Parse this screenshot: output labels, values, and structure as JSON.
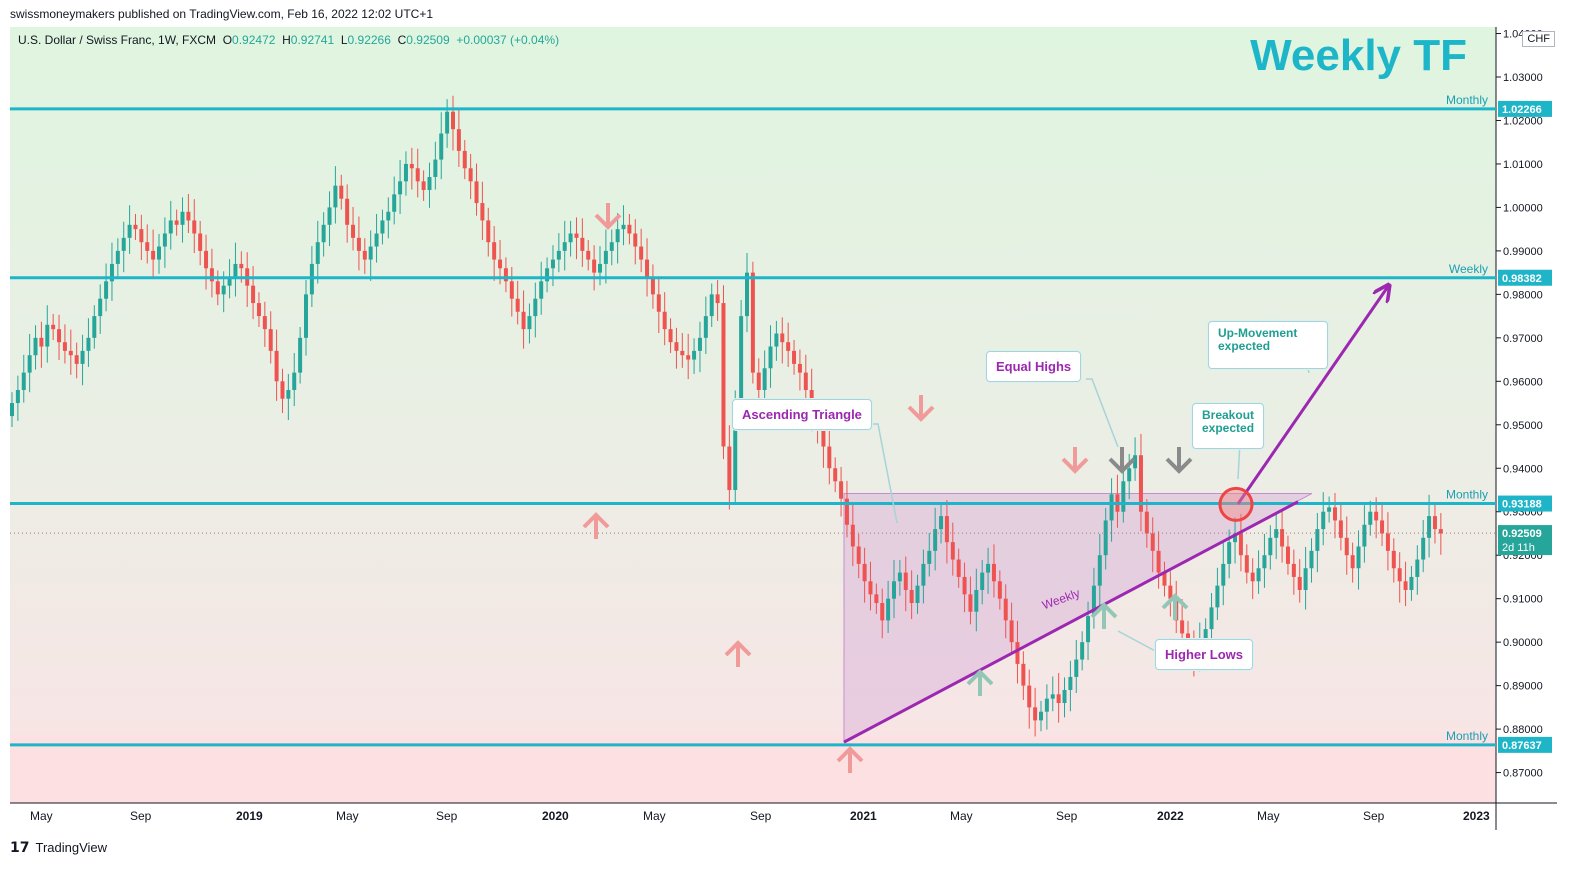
{
  "header": {
    "published_by": "swissmoneymakers published on TradingView.com, Feb 16, 2022 12:02 UTC+1"
  },
  "legend": {
    "symbol": "U.S. Dollar / Swiss Franc, 1W, FXCM",
    "open_label": "O",
    "open": "0.92472",
    "high_label": "H",
    "high": "0.92741",
    "low_label": "L",
    "low": "0.92266",
    "close_label": "C",
    "close": "0.92509",
    "change": "+0.00037 (+0.04%)"
  },
  "title": "Weekly TF",
  "currency_badge": "CHF",
  "footer": {
    "logo": "TradingView"
  },
  "colors": {
    "level_line": "#1fb5c9",
    "triangle_line": "#9c27b0",
    "up_candle": "#26a69a",
    "down_candle": "#ef5350",
    "bg_top": "#dff3e0",
    "bg_bottom": "#fde2e4"
  },
  "chart_data": {
    "type": "candlestick",
    "timeframe": "1W",
    "y_axis": {
      "range": [
        0.863,
        1.0415
      ],
      "ticks": [
        "1.04000",
        "1.03000",
        "1.02000",
        "1.01000",
        "1.00000",
        "0.99000",
        "0.98000",
        "0.97000",
        "0.96000",
        "0.95000",
        "0.94000",
        "0.93000",
        "0.92000",
        "0.91000",
        "0.90000",
        "0.89000",
        "0.88000",
        "0.87000"
      ]
    },
    "x_axis": {
      "ticks": [
        "May",
        "Sep",
        "2019",
        "May",
        "Sep",
        "2020",
        "May",
        "Sep",
        "2021",
        "May",
        "Sep",
        "2022",
        "May",
        "Sep",
        "2023"
      ]
    },
    "levels": [
      {
        "label": "Monthly",
        "value": 1.02266,
        "text": "1.02266"
      },
      {
        "label": "Weekly",
        "value": 0.98382,
        "text": "0.98382"
      },
      {
        "label": "Monthly",
        "value": 0.93188,
        "text": "0.93188"
      },
      {
        "label": "Monthly",
        "value": 0.87637,
        "text": "0.87637"
      }
    ],
    "current_price": {
      "value": 0.92509,
      "text": "0.92509",
      "countdown": "2d 11h"
    },
    "trendline_label": "Weekly",
    "annotations": {
      "ascending_triangle": "Ascending Triangle",
      "equal_highs": "Equal Highs",
      "higher_lows": "Higher Lows",
      "up_movement_1": "Up-Movement",
      "up_movement_2": "expected",
      "breakout_1": "Breakout",
      "breakout_2": "expected"
    },
    "weekly_closes": [
      0.955,
      0.958,
      0.962,
      0.966,
      0.97,
      0.968,
      0.973,
      0.972,
      0.969,
      0.967,
      0.966,
      0.964,
      0.967,
      0.97,
      0.975,
      0.979,
      0.983,
      0.987,
      0.99,
      0.993,
      0.996,
      0.995,
      0.992,
      0.99,
      0.988,
      0.991,
      0.994,
      0.997,
      0.996,
      0.999,
      0.997,
      0.994,
      0.99,
      0.986,
      0.983,
      0.98,
      0.982,
      0.984,
      0.987,
      0.986,
      0.982,
      0.978,
      0.975,
      0.972,
      0.967,
      0.96,
      0.956,
      0.958,
      0.962,
      0.97,
      0.98,
      0.987,
      0.992,
      0.996,
      1.0,
      1.005,
      1.002,
      0.996,
      0.993,
      0.99,
      0.988,
      0.991,
      0.994,
      0.997,
      0.999,
      1.003,
      1.006,
      1.01,
      1.009,
      1.006,
      1.004,
      1.007,
      1.011,
      1.017,
      1.022,
      1.018,
      1.013,
      1.009,
      1.006,
      1.001,
      0.997,
      0.992,
      0.988,
      0.986,
      0.983,
      0.979,
      0.976,
      0.972,
      0.975,
      0.979,
      0.983,
      0.986,
      0.988,
      0.99,
      0.992,
      0.994,
      0.993,
      0.99,
      0.988,
      0.985,
      0.987,
      0.99,
      0.992,
      0.995,
      0.996,
      0.994,
      0.991,
      0.988,
      0.984,
      0.98,
      0.976,
      0.972,
      0.969,
      0.967,
      0.966,
      0.965,
      0.967,
      0.97,
      0.975,
      0.98,
      0.978,
      0.945,
      0.935,
      0.955,
      0.975,
      0.985,
      0.962,
      0.958,
      0.963,
      0.968,
      0.971,
      0.969,
      0.967,
      0.964,
      0.962,
      0.958,
      0.953,
      0.949,
      0.945,
      0.94,
      0.937,
      0.933,
      0.927,
      0.922,
      0.918,
      0.914,
      0.911,
      0.909,
      0.905,
      0.91,
      0.914,
      0.916,
      0.912,
      0.909,
      0.913,
      0.918,
      0.921,
      0.926,
      0.929,
      0.923,
      0.919,
      0.915,
      0.911,
      0.907,
      0.912,
      0.916,
      0.918,
      0.914,
      0.91,
      0.905,
      0.9,
      0.895,
      0.89,
      0.885,
      0.882,
      0.884,
      0.887,
      0.888,
      0.886,
      0.889,
      0.892,
      0.896,
      0.9,
      0.906,
      0.913,
      0.92,
      0.928,
      0.934,
      0.93,
      0.937,
      0.94,
      0.943,
      0.93,
      0.925,
      0.921,
      0.916,
      0.913,
      0.91,
      0.905,
      0.902,
      0.899,
      0.897,
      0.9,
      0.903,
      0.908,
      0.913,
      0.918,
      0.923,
      0.925,
      0.92,
      0.916,
      0.914,
      0.917,
      0.92,
      0.924,
      0.926,
      0.922,
      0.918,
      0.915,
      0.912,
      0.917,
      0.921,
      0.926,
      0.93,
      0.931,
      0.928,
      0.924,
      0.92,
      0.917,
      0.922,
      0.927,
      0.93,
      0.928,
      0.925,
      0.921,
      0.917,
      0.914,
      0.912,
      0.915,
      0.919,
      0.924,
      0.929,
      0.926,
      0.925
    ]
  }
}
